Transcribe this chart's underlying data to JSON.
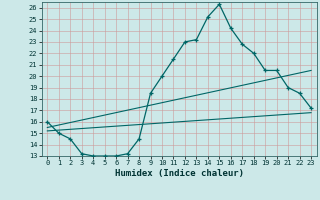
{
  "xlabel": "Humidex (Indice chaleur)",
  "background_color": "#cce8e8",
  "grid_color": "#cc9999",
  "line_color": "#006666",
  "xlim": [
    -0.5,
    23.5
  ],
  "ylim": [
    13,
    26.5
  ],
  "xticks": [
    0,
    1,
    2,
    3,
    4,
    5,
    6,
    7,
    8,
    9,
    10,
    11,
    12,
    13,
    14,
    15,
    16,
    17,
    18,
    19,
    20,
    21,
    22,
    23
  ],
  "yticks": [
    13,
    14,
    15,
    16,
    17,
    18,
    19,
    20,
    21,
    22,
    23,
    24,
    25,
    26
  ],
  "line1_x": [
    0,
    1,
    2,
    3,
    4,
    5,
    6,
    7,
    8,
    9,
    10,
    11,
    12,
    13,
    14,
    15,
    16,
    17,
    18,
    19,
    20,
    21,
    22,
    23
  ],
  "line1_y": [
    16.0,
    15.0,
    14.5,
    13.2,
    13.0,
    13.0,
    13.0,
    13.2,
    14.5,
    18.5,
    20.0,
    21.5,
    23.0,
    23.2,
    25.2,
    26.3,
    24.2,
    22.8,
    22.0,
    20.5,
    20.5,
    19.0,
    18.5,
    17.2
  ],
  "line2_x": [
    0,
    23
  ],
  "line2_y": [
    15.5,
    20.5
  ],
  "line3_x": [
    0,
    23
  ],
  "line3_y": [
    15.2,
    16.8
  ]
}
